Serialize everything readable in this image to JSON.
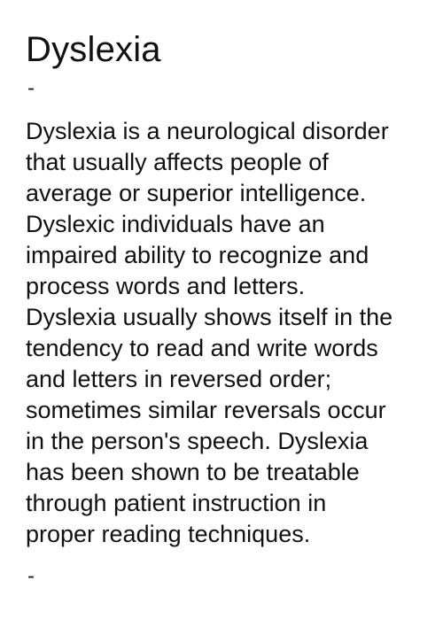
{
  "title": "Dyslexia",
  "separator_top": "-",
  "separator_bottom": "-",
  "body_lines": [
    "Dyslexia is a neurological disorder",
    "that usually affects people of",
    "average or superior intelligence.",
    "Dyslexic individuals have an",
    "impaired ability to recognize and",
    "process words and letters.",
    "Dyslexia usually shows itself in the",
    "tendency to read and write words",
    "and letters in reversed order;",
    "sometimes similar reversals occur",
    "in the person's speech. Dyslexia",
    "has been shown to be treatable",
    "through patient instruction in",
    "proper reading techniques."
  ]
}
